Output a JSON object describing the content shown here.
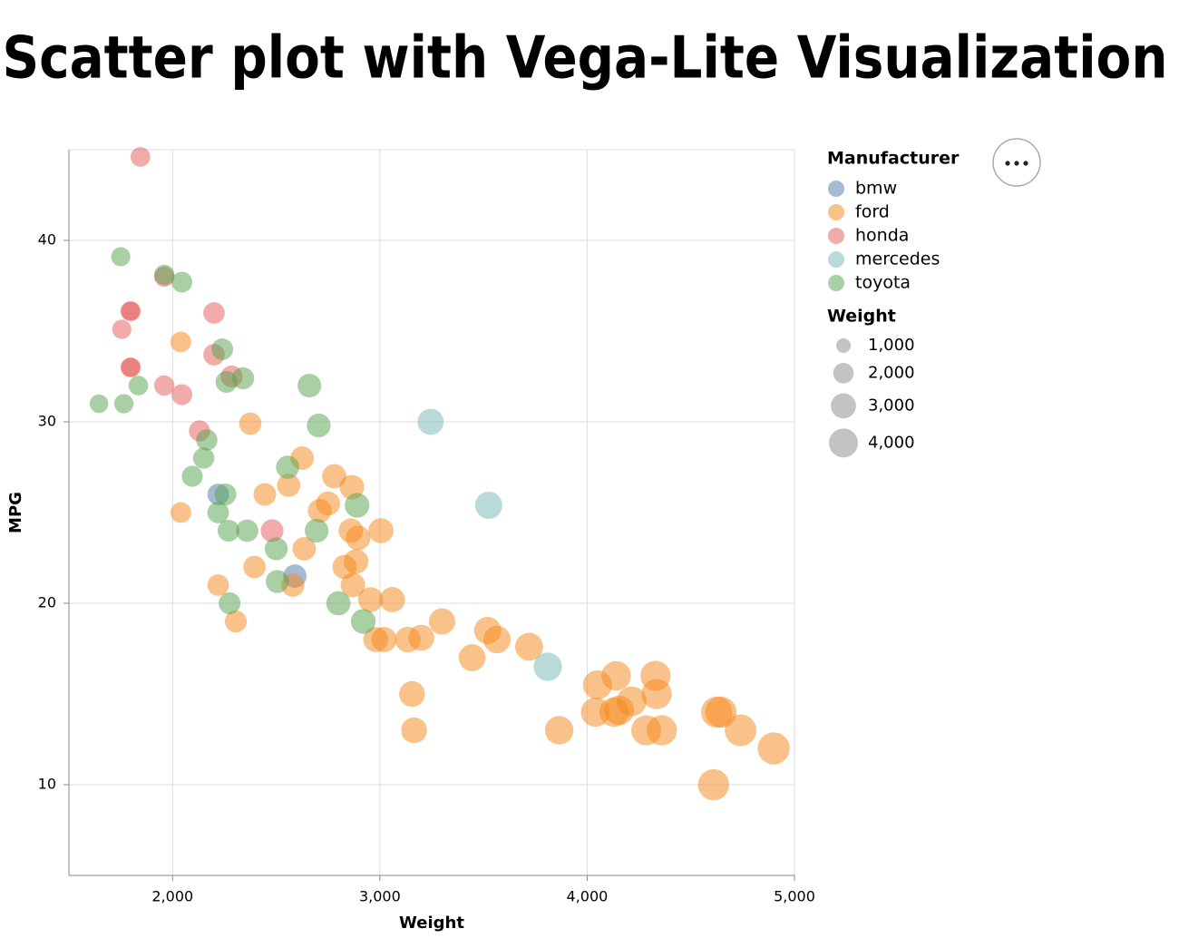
{
  "chart_data": {
    "type": "scatter",
    "title": "Scatter plot with Vega-Lite Visualization",
    "x_label": "Weight",
    "y_label": "MPG",
    "xlim": [
      1500,
      5000
    ],
    "ylim": [
      5,
      45
    ],
    "xticks": [
      {
        "value": 2000,
        "label": "2,000"
      },
      {
        "value": 3000,
        "label": "3,000"
      },
      {
        "value": 4000,
        "label": "4,000"
      },
      {
        "value": 5000,
        "label": "5,000"
      }
    ],
    "yticks": [
      10,
      20,
      30,
      40
    ],
    "grid": true,
    "legend_title": "Manufacturer",
    "size_legend_title": "Weight",
    "size_legend": [
      {
        "value": 1000,
        "label": "1,000"
      },
      {
        "value": 2000,
        "label": "2,000"
      },
      {
        "value": 3000,
        "label": "3,000"
      },
      {
        "value": 4000,
        "label": "4,000"
      }
    ],
    "series": [
      {
        "name": "bmw",
        "color": "#4c78a8",
        "x": [
          2220,
          2590
        ],
        "values": [
          26,
          21.5
        ]
      },
      {
        "name": "ford",
        "color": "#f58518",
        "x": [
          2040,
          2375,
          2625,
          2445,
          2560,
          2780,
          2865,
          2750,
          2710,
          2860,
          2895,
          3005,
          2040,
          2635,
          2395,
          2830,
          2885,
          2870,
          2220,
          2580,
          2305,
          2955,
          3060,
          2980,
          3020,
          3135,
          3200,
          3300,
          3520,
          3565,
          3720,
          3445,
          3155,
          3165,
          3865,
          4050,
          4140,
          4040,
          4130,
          4155,
          4215,
          4330,
          4335,
          4285,
          4360,
          4625,
          4645,
          4740,
          4900,
          4610
        ],
        "values": [
          34.4,
          29.9,
          28,
          26,
          26.5,
          27,
          26.4,
          25.5,
          25.1,
          24,
          23.6,
          24,
          25,
          23,
          22,
          22,
          22.3,
          21,
          21,
          21,
          19,
          20.2,
          20.2,
          18,
          18,
          18,
          18.1,
          19,
          18.5,
          18,
          17.6,
          17,
          15,
          13,
          13,
          15.5,
          16,
          14,
          14,
          14.1,
          14.6,
          16,
          15,
          13,
          13,
          14,
          14,
          13,
          12,
          10
        ]
      },
      {
        "name": "honda",
        "color": "#e45756",
        "x": [
          1845,
          1795,
          1800,
          1755,
          1795,
          1800,
          1960,
          2200,
          2200,
          2285,
          1960,
          2045,
          2130,
          2480
        ],
        "values": [
          44.6,
          36.1,
          36.1,
          35.1,
          33,
          33,
          38,
          36,
          33.7,
          32.5,
          32,
          31.5,
          29.5,
          24
        ]
      },
      {
        "name": "mercedes",
        "color": "#72b7b2",
        "x": [
          3245,
          3525,
          3810
        ],
        "values": [
          30,
          25.4,
          16.5
        ]
      },
      {
        "name": "toyota",
        "color": "#54a24b",
        "x": [
          1750,
          1960,
          2045,
          2240,
          2260,
          2340,
          1835,
          1645,
          1765,
          2660,
          2705,
          2165,
          2150,
          2095,
          2555,
          2255,
          2220,
          2270,
          2360,
          2695,
          2890,
          2500,
          2505,
          2275,
          2800,
          2920
        ],
        "values": [
          39.1,
          38.1,
          37.7,
          34,
          32.2,
          32.4,
          32,
          31,
          31,
          32,
          29.8,
          29,
          28,
          27,
          27.5,
          26,
          25,
          24,
          24,
          24,
          25.4,
          23,
          21.2,
          20,
          20,
          19
        ]
      }
    ]
  }
}
